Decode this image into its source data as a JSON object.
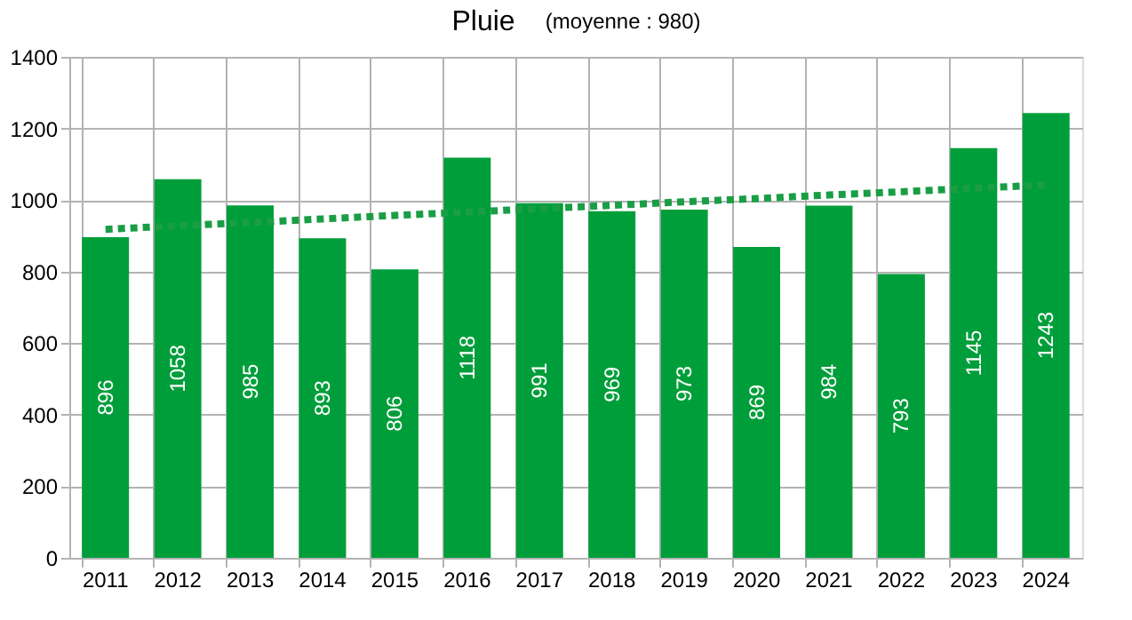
{
  "chart_data": {
    "type": "bar",
    "title": "Pluie",
    "subtitle": "(moyenne : 980)",
    "categories": [
      "2011",
      "2012",
      "2013",
      "2014",
      "2015",
      "2016",
      "2017",
      "2018",
      "2019",
      "2020",
      "2021",
      "2022",
      "2023",
      "2024"
    ],
    "series": [
      {
        "color": "#009e3b",
        "values": [
          896,
          1058,
          985,
          893,
          806,
          1118,
          991,
          969,
          973,
          869,
          984,
          793,
          1145,
          1243
        ],
        "value_labels": [
          "896",
          "1058",
          "985",
          "893",
          "806",
          "1118",
          "991",
          "969",
          "973",
          "869",
          "984",
          "793",
          "1145",
          "1243"
        ]
      },
      {
        "type": "line",
        "color": "#1a9e45",
        "line_style": "dotted",
        "values": [
          918,
          928,
          937,
          947,
          957,
          966,
          976,
          985,
          995,
          1004,
          1014,
          1023,
          1033,
          1042
        ]
      }
    ],
    "ylim": [
      0,
      1400
    ],
    "yticks": [
      0,
      200,
      400,
      600,
      800,
      1000,
      1200,
      1400
    ],
    "grid": true
  }
}
